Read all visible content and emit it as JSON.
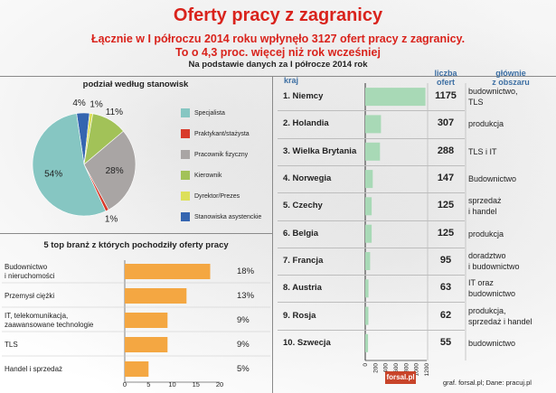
{
  "header": {
    "title": "Oferty pracy z zagranicy",
    "subtitle_1": "Łącznie w I półroczu 2014 roku wpłynęło 3127 ofert pracy z zagranicy.",
    "subtitle_2": "To o 4,3 proc. więcej niż rok wcześniej",
    "note": "Na podstawie danych za I półrocze 2014 rok"
  },
  "footer": {
    "brand": "forsal.pl",
    "credit": "graf. forsal.pl;  Dane: pracuj.pl"
  },
  "colors": {
    "title_red": "#d9231c",
    "header_blue": "#3d6fa3",
    "bar_orange": "#f4a742",
    "country_bar": "#a8d9b6"
  },
  "chart_data": [
    {
      "type": "pie",
      "title": "podział według stanowisk",
      "categories": [
        "Specjalista",
        "Praktykant/stażysta",
        "Pracownik fizyczny",
        "Kierownik",
        "Dyrektor/Prezes",
        "Stanowiska asystenckie"
      ],
      "values": [
        54,
        1,
        28,
        11,
        1,
        4
      ],
      "labels": [
        "54%",
        "1%",
        "28%",
        "11%",
        "1%",
        "4%"
      ],
      "colors": [
        "#86c6c2",
        "#d83a2a",
        "#a9a5a4",
        "#a2c258",
        "#dde05a",
        "#3565b0"
      ],
      "legend": "right"
    },
    {
      "type": "bar",
      "orientation": "horizontal",
      "title": "5 top branż z których pochodziły oferty pracy",
      "categories": [
        "Budownictwo\ni nieruchomości",
        "Przemysł ciężki",
        "IT, telekomunikacja,\nzaawansowane technologie",
        "TLS",
        "Handel i sprzedaż"
      ],
      "values": [
        18,
        13,
        9,
        9,
        5
      ],
      "labels": [
        "18%",
        "13%",
        "9%",
        "9%",
        "5%"
      ],
      "xlim": [
        0,
        20
      ],
      "xticks": [
        "0",
        "5",
        "10",
        "15",
        "20"
      ]
    },
    {
      "type": "bar",
      "orientation": "horizontal",
      "col_headers": {
        "country": "kraj",
        "count": "liczba\nofert",
        "area": "głównie\nz obszaru"
      },
      "categories": [
        "1. Niemcy",
        "2. Holandia",
        "3. Wielka Brytania",
        "4. Norwegia",
        "5. Czechy",
        "6. Belgia",
        "7. Francja",
        "8. Austria",
        "9. Rosja",
        "10. Szwecja"
      ],
      "values": [
        1175,
        307,
        288,
        147,
        125,
        125,
        95,
        63,
        62,
        55
      ],
      "areas": [
        "budownictwo,\nTLS",
        "produkcja",
        "TLS i IT",
        "Budownictwo",
        "sprzedaż\ni handel",
        "produkcja",
        "doradztwo\ni budownictwo",
        "IT oraz\nbudownictwo",
        "produkcja,\nsprzedaż i handel",
        "budownictwo"
      ],
      "xlim": [
        0,
        1200
      ],
      "xticks": [
        "0",
        "200",
        "400",
        "600",
        "800",
        "1000",
        "1200"
      ]
    }
  ]
}
